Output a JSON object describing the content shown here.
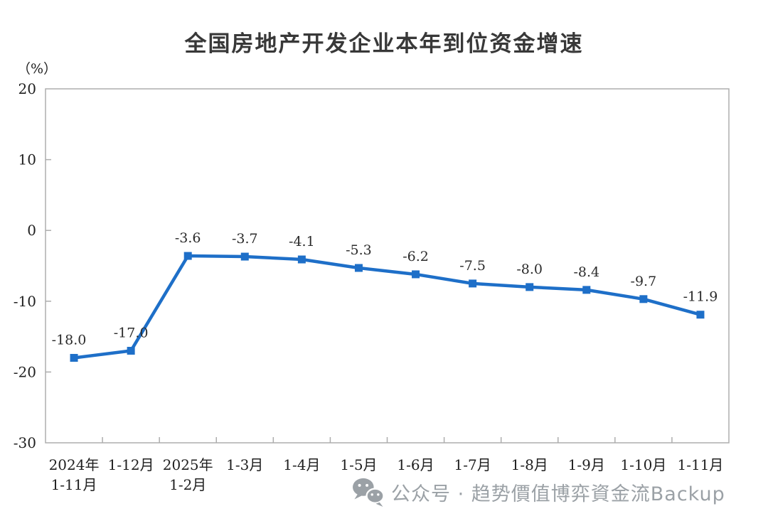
{
  "chart_data": {
    "type": "line",
    "title": "全国房地产开发企业本年到位资金增速",
    "unit_label": "（%）",
    "categories": [
      [
        "2024年",
        "1-11月"
      ],
      [
        "1-12月"
      ],
      [
        "2025年",
        "1-2月"
      ],
      [
        "1-3月"
      ],
      [
        "1-4月"
      ],
      [
        "1-5月"
      ],
      [
        "1-6月"
      ],
      [
        "1-7月"
      ],
      [
        "1-8月"
      ],
      [
        "1-9月"
      ],
      [
        "1-10月"
      ],
      [
        "1-11月"
      ]
    ],
    "values": [
      -18.0,
      -17.0,
      -3.6,
      -3.7,
      -4.1,
      -5.3,
      -6.2,
      -7.5,
      -8.0,
      -8.4,
      -9.7,
      -11.9
    ],
    "point_labels": [
      "-18.0",
      "-17.0",
      "-3.6",
      "-3.7",
      "-4.1",
      "-5.3",
      "-6.2",
      "-7.5",
      "-8.0",
      "-8.4",
      "-9.7",
      "-11.9"
    ],
    "ylim": [
      -30,
      20
    ],
    "yticks": [
      20,
      10,
      0,
      -10,
      -20,
      -30
    ],
    "grid": false,
    "legend": "none",
    "marker": "square",
    "line_color": "#1E6FC8"
  },
  "watermark": {
    "icon": "wechat-icon",
    "text": "公众号 · 趋势價值博弈資金流Backup"
  },
  "colors": {
    "axis": "#ADADAD",
    "tick_text": "#1F1F1F",
    "point_label_text": "#2B2B2B",
    "title": "#383838",
    "watermark": "#9BA1A6",
    "background": "#FFFFFF"
  }
}
